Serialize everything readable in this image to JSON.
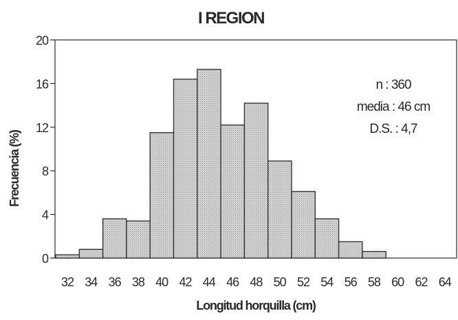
{
  "chart_data": {
    "type": "bar",
    "title": "I REGION",
    "xlabel": "Longitud horquilla (cm)",
    "ylabel": "Frecuencia (%)",
    "ylim": [
      0,
      20
    ],
    "yticks": [
      "0",
      "4",
      "8",
      "12",
      "16",
      "20"
    ],
    "xticks": [
      "32",
      "34",
      "36",
      "38",
      "40",
      "42",
      "44",
      "46",
      "48",
      "50",
      "52",
      "54",
      "56",
      "58",
      "60",
      "62",
      "64"
    ],
    "categories": [
      "32",
      "34",
      "36",
      "38",
      "40",
      "42",
      "44",
      "46",
      "48",
      "50",
      "52",
      "54",
      "56",
      "58",
      "60",
      "62",
      "64"
    ],
    "values": [
      0.3,
      0.8,
      3.6,
      3.4,
      11.5,
      16.4,
      17.3,
      12.2,
      14.2,
      8.9,
      6.1,
      3.6,
      1.5,
      0.6,
      0,
      0,
      0
    ],
    "annotations": [
      "n : 360",
      "media : 46 cm",
      "D.S. : 4,7"
    ],
    "grid": false,
    "colors": {
      "bar_fill": "#c9c9c9",
      "bar_stroke": "#2a2a2a",
      "axis": "#2a2a2a"
    }
  }
}
